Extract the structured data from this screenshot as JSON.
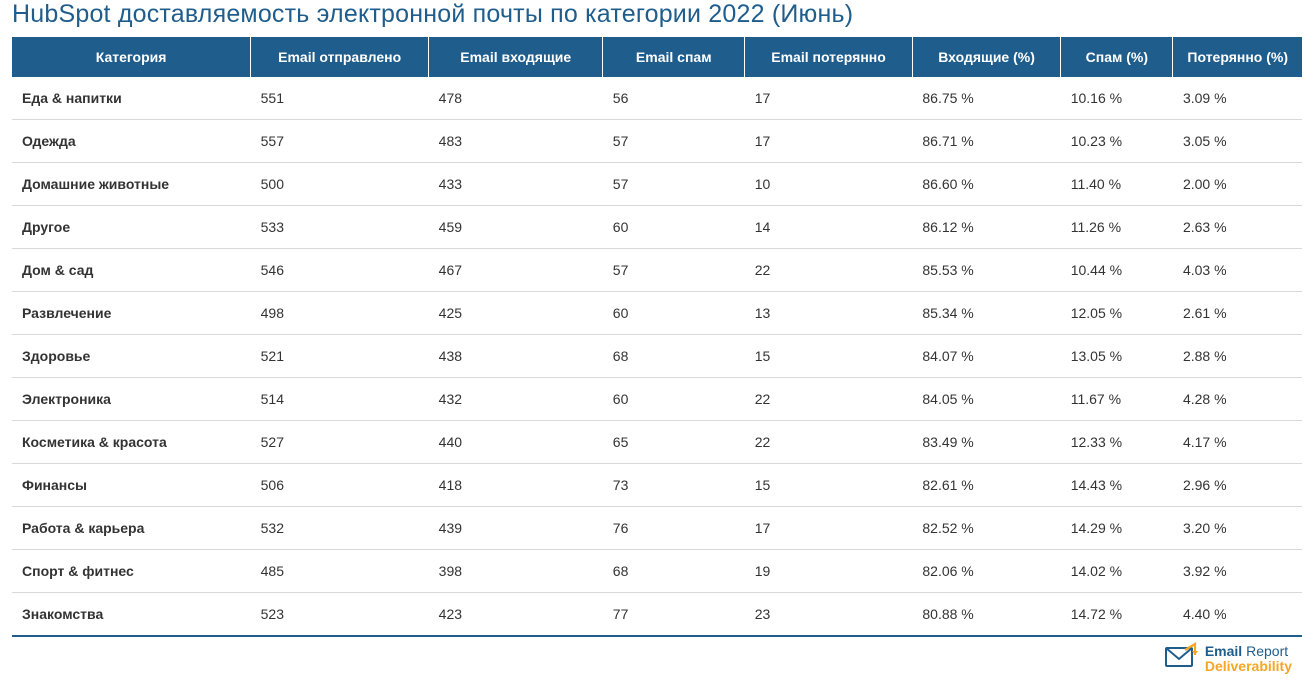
{
  "title": "HubSpot доставляемость электронной почты по категории 2022 (Июнь)",
  "colors": {
    "header_bg": "#1f5d8c",
    "header_text": "#ffffff",
    "title_color": "#1f5d8c",
    "row_border": "#d9d9d9",
    "body_text": "#333333",
    "logo_primary": "#1f5d8c",
    "logo_accent": "#f5a623",
    "background": "#ffffff"
  },
  "table": {
    "column_widths_pct": [
      18.5,
      13.8,
      13.5,
      11.0,
      13.0,
      11.5,
      8.7,
      10.0
    ],
    "columns": [
      "Категория",
      "Email отправлено",
      "Email входящие",
      "Email спам",
      "Email потерянно",
      "Входящие (%)",
      "Спам (%)",
      "Потерянно (%)"
    ],
    "rows": [
      [
        "Еда & напитки",
        "551",
        "478",
        "56",
        "17",
        "86.75 %",
        "10.16 %",
        "3.09 %"
      ],
      [
        "Одежда",
        "557",
        "483",
        "57",
        "17",
        "86.71 %",
        "10.23 %",
        "3.05 %"
      ],
      [
        "Домашние животные",
        "500",
        "433",
        "57",
        "10",
        "86.60 %",
        "11.40 %",
        "2.00 %"
      ],
      [
        "Другое",
        "533",
        "459",
        "60",
        "14",
        "86.12 %",
        "11.26 %",
        "2.63 %"
      ],
      [
        "Дом & сад",
        "546",
        "467",
        "57",
        "22",
        "85.53 %",
        "10.44 %",
        "4.03 %"
      ],
      [
        "Развлечение",
        "498",
        "425",
        "60",
        "13",
        "85.34 %",
        "12.05 %",
        "2.61 %"
      ],
      [
        "Здоровье",
        "521",
        "438",
        "68",
        "15",
        "84.07 %",
        "13.05 %",
        "2.88 %"
      ],
      [
        "Электроника",
        "514",
        "432",
        "60",
        "22",
        "84.05 %",
        "11.67 %",
        "4.28 %"
      ],
      [
        "Косметика & красота",
        "527",
        "440",
        "65",
        "22",
        "83.49 %",
        "12.33 %",
        "4.17 %"
      ],
      [
        "Финансы",
        "506",
        "418",
        "73",
        "15",
        "82.61 %",
        "14.43 %",
        "2.96 %"
      ],
      [
        "Работа & карьера",
        "532",
        "439",
        "76",
        "17",
        "82.52 %",
        "14.29 %",
        "3.20 %"
      ],
      [
        "Спорт & фитнес",
        "485",
        "398",
        "68",
        "19",
        "82.06 %",
        "14.02 %",
        "3.92 %"
      ],
      [
        "Знакомства",
        "523",
        "423",
        "77",
        "23",
        "80.88 %",
        "14.72 %",
        "4.40 %"
      ]
    ]
  },
  "footer_logo": {
    "line1_a": "Email",
    "line1_b": "Report",
    "line2": "Deliverability"
  }
}
